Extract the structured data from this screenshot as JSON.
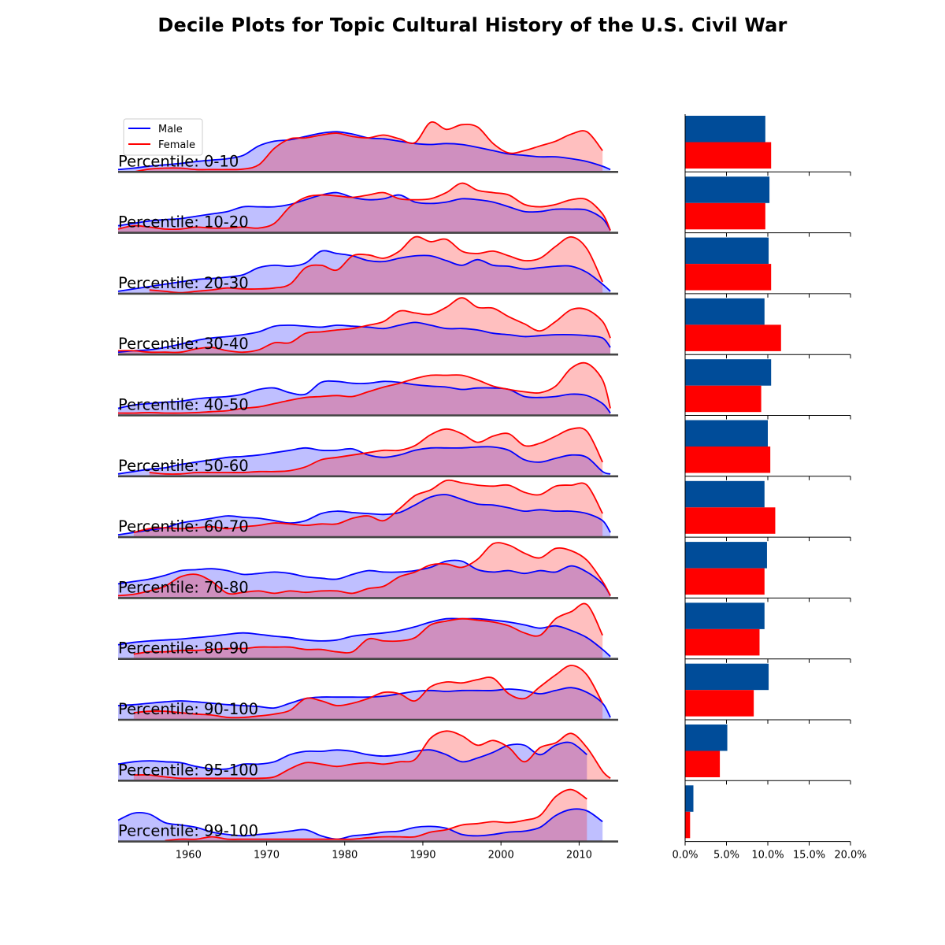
{
  "title": "Decile Plots for Topic Cultural History of the U.S. Civil War",
  "colors": {
    "male_line": "#0000ff",
    "male_fill": "#0000ff",
    "female_line": "#ff0000",
    "female_fill": "#ff0000",
    "male_bar": "#004c99",
    "female_bar": "#ff0000",
    "axis": "#444444"
  },
  "chart_data": [
    {
      "type": "area",
      "title": "",
      "xlabel": "",
      "ylabel": "",
      "xlim": [
        1951,
        2015
      ],
      "x_ticks": [
        1960,
        1970,
        1980,
        1990,
        2000,
        2010
      ],
      "x_tick_labels": [
        "1960",
        "1970",
        "1980",
        "1990",
        "2000",
        "2010"
      ],
      "legend": {
        "position": "top-left",
        "entries": [
          "Male",
          "Female"
        ]
      },
      "x": [
        1951,
        1953,
        1955,
        1957,
        1959,
        1961,
        1963,
        1965,
        1967,
        1969,
        1971,
        1973,
        1975,
        1977,
        1979,
        1981,
        1983,
        1985,
        1987,
        1989,
        1991,
        1993,
        1995,
        1997,
        1999,
        2001,
        2003,
        2005,
        2007,
        2009,
        2011,
        2013,
        2014
      ],
      "panels": [
        {
          "label": "Percentile: 0-10",
          "male": [
            0.05,
            0.08,
            0.12,
            0.15,
            0.18,
            0.22,
            0.25,
            0.28,
            0.35,
            0.55,
            0.65,
            0.68,
            0.75,
            0.82,
            0.85,
            0.8,
            0.72,
            0.7,
            0.65,
            0.6,
            0.58,
            0.6,
            0.58,
            0.52,
            0.45,
            0.38,
            0.35,
            0.32,
            0.32,
            0.28,
            0.22,
            0.12,
            0.05
          ],
          "female": [
            null,
            0.0,
            0.06,
            0.08,
            0.08,
            0.05,
            0.05,
            0.05,
            0.06,
            0.15,
            0.5,
            0.7,
            0.72,
            0.78,
            0.82,
            0.75,
            0.72,
            0.78,
            0.7,
            0.62,
            1.05,
            0.9,
            1.0,
            0.95,
            0.6,
            0.4,
            0.45,
            0.55,
            0.65,
            0.8,
            0.85,
            0.45,
            null
          ]
        },
        {
          "label": "Percentile: 10-20",
          "male": [
            0.15,
            0.2,
            0.25,
            0.28,
            0.3,
            0.35,
            0.4,
            0.45,
            0.55,
            0.55,
            0.55,
            0.6,
            0.7,
            0.8,
            0.85,
            0.75,
            0.7,
            0.72,
            0.8,
            0.65,
            0.62,
            0.65,
            0.72,
            0.7,
            0.65,
            0.55,
            0.45,
            0.45,
            0.5,
            0.5,
            0.48,
            0.3,
            0.05
          ],
          "female": [
            0.08,
            0.15,
            0.12,
            0.08,
            0.08,
            0.12,
            0.1,
            0.1,
            0.12,
            0.1,
            0.2,
            0.55,
            0.75,
            0.8,
            0.78,
            0.75,
            0.8,
            0.85,
            0.72,
            0.7,
            0.72,
            0.85,
            1.05,
            0.9,
            0.85,
            0.8,
            0.6,
            0.55,
            0.6,
            0.7,
            0.7,
            0.4,
            0.05
          ]
        },
        {
          "label": "Percentile: 20-30",
          "male": [
            0.05,
            0.1,
            0.15,
            0.2,
            0.25,
            0.3,
            0.32,
            0.35,
            0.4,
            0.55,
            0.6,
            0.58,
            0.65,
            0.9,
            0.85,
            0.8,
            0.7,
            0.68,
            0.75,
            0.8,
            0.8,
            0.7,
            0.6,
            0.72,
            0.6,
            0.58,
            0.52,
            0.55,
            0.58,
            0.58,
            0.45,
            0.2,
            0.05
          ],
          "female": [
            null,
            null,
            0.08,
            0.05,
            0.02,
            0.05,
            0.08,
            0.12,
            0.1,
            0.1,
            0.12,
            0.2,
            0.55,
            0.6,
            0.5,
            0.8,
            0.82,
            0.75,
            0.9,
            1.2,
            1.1,
            1.15,
            0.9,
            0.85,
            0.9,
            0.8,
            0.7,
            0.75,
            1.0,
            1.2,
            0.95,
            0.25,
            null
          ]
        },
        {
          "label": "Percentile: 30-40",
          "male": [
            0.05,
            0.08,
            0.1,
            0.15,
            0.22,
            0.3,
            0.35,
            0.38,
            0.42,
            0.48,
            0.6,
            0.62,
            0.6,
            0.58,
            0.62,
            0.6,
            0.58,
            0.55,
            0.62,
            0.68,
            0.62,
            0.55,
            0.55,
            0.52,
            0.45,
            0.42,
            0.38,
            0.4,
            0.42,
            0.42,
            0.4,
            0.35,
            0.15
          ],
          "female": [
            0.08,
            0.08,
            0.05,
            0.05,
            0.05,
            0.12,
            0.15,
            0.08,
            0.05,
            0.1,
            0.25,
            0.25,
            0.45,
            0.48,
            0.52,
            0.55,
            0.62,
            0.7,
            0.92,
            0.88,
            0.85,
            1.0,
            1.2,
            1.0,
            0.98,
            0.8,
            0.65,
            0.5,
            0.7,
            0.95,
            0.95,
            0.7,
            0.35
          ]
        },
        {
          "label": "Percentile: 40-50",
          "male": [
            0.15,
            0.22,
            0.25,
            0.28,
            0.3,
            0.35,
            0.38,
            0.4,
            0.45,
            0.55,
            0.58,
            0.48,
            0.45,
            0.7,
            0.72,
            0.68,
            0.68,
            0.72,
            0.7,
            0.65,
            0.62,
            0.6,
            0.55,
            0.58,
            0.58,
            0.55,
            0.4,
            0.38,
            0.4,
            0.45,
            0.42,
            0.25,
            0.05
          ],
          "female": [
            0.05,
            0.05,
            0.06,
            0.05,
            0.05,
            0.06,
            0.08,
            0.1,
            0.15,
            0.18,
            0.25,
            0.32,
            0.38,
            0.4,
            0.42,
            0.4,
            0.5,
            0.6,
            0.68,
            0.78,
            0.85,
            0.85,
            0.85,
            0.75,
            0.62,
            0.55,
            0.5,
            0.48,
            0.62,
            1.0,
            1.1,
            0.75,
            0.15
          ]
        },
        {
          "label": "Percentile: 50-60",
          "male": [
            0.05,
            0.1,
            0.15,
            0.18,
            0.25,
            0.3,
            0.35,
            0.4,
            0.42,
            0.45,
            0.5,
            0.55,
            0.6,
            0.55,
            0.55,
            0.58,
            0.45,
            0.4,
            0.45,
            0.55,
            0.6,
            0.6,
            0.6,
            0.62,
            0.62,
            0.55,
            0.35,
            0.3,
            0.38,
            0.45,
            0.4,
            0.1,
            0.05
          ],
          "female": [
            null,
            null,
            0.08,
            0.05,
            0.05,
            0.08,
            0.08,
            0.08,
            0.08,
            0.1,
            0.1,
            0.12,
            0.2,
            0.35,
            0.4,
            0.45,
            0.5,
            0.55,
            0.55,
            0.65,
            0.88,
            1.0,
            0.9,
            0.72,
            0.85,
            0.9,
            0.65,
            0.7,
            0.85,
            1.0,
            0.95,
            0.3,
            null
          ]
        },
        {
          "label": "Percentile: 60-70",
          "male": [
            0.05,
            0.1,
            0.15,
            0.2,
            0.3,
            0.35,
            0.4,
            0.45,
            0.42,
            0.4,
            0.35,
            0.3,
            0.35,
            0.5,
            0.55,
            0.52,
            0.5,
            0.48,
            0.52,
            0.68,
            0.85,
            0.9,
            0.8,
            0.7,
            0.68,
            0.62,
            0.55,
            0.58,
            0.55,
            0.55,
            0.5,
            0.35,
            0.1
          ],
          "female": [
            null,
            0.1,
            0.18,
            0.2,
            0.18,
            0.2,
            0.22,
            0.18,
            0.22,
            0.25,
            0.3,
            0.28,
            0.25,
            0.28,
            0.28,
            0.4,
            0.45,
            0.35,
            0.6,
            0.88,
            1.0,
            1.2,
            1.15,
            1.1,
            1.08,
            1.1,
            0.95,
            0.9,
            1.08,
            1.1,
            1.1,
            0.5,
            null
          ]
        },
        {
          "label": "Percentile: 70-80",
          "male": [
            0.3,
            0.35,
            0.4,
            0.48,
            0.58,
            0.6,
            0.62,
            0.58,
            0.5,
            0.52,
            0.55,
            0.52,
            0.45,
            0.42,
            0.4,
            0.5,
            0.58,
            0.55,
            0.55,
            0.58,
            0.65,
            0.78,
            0.78,
            0.6,
            0.55,
            0.58,
            0.52,
            0.58,
            0.55,
            0.68,
            0.55,
            0.3,
            0.05
          ],
          "female": [
            0.05,
            0.08,
            0.15,
            0.25,
            0.45,
            0.5,
            0.35,
            0.1,
            0.12,
            0.15,
            0.1,
            0.15,
            0.12,
            0.15,
            0.15,
            0.1,
            0.2,
            0.25,
            0.45,
            0.55,
            0.7,
            0.72,
            0.65,
            0.82,
            1.15,
            1.12,
            0.95,
            0.85,
            1.05,
            1.0,
            0.8,
            0.35,
            0.05
          ]
        },
        {
          "label": "Percentile: 80-90",
          "male": [
            0.3,
            0.35,
            0.38,
            0.4,
            0.42,
            0.45,
            0.48,
            0.52,
            0.55,
            0.52,
            0.48,
            0.45,
            0.4,
            0.38,
            0.4,
            0.48,
            0.52,
            0.55,
            0.6,
            0.68,
            0.78,
            0.85,
            0.85,
            0.85,
            0.82,
            0.78,
            0.72,
            0.65,
            0.7,
            0.6,
            0.45,
            0.2,
            0.05
          ],
          "female": [
            null,
            0.1,
            0.15,
            0.15,
            0.18,
            0.18,
            0.2,
            0.22,
            0.22,
            0.25,
            0.25,
            0.25,
            0.2,
            0.2,
            0.15,
            0.15,
            0.42,
            0.38,
            0.38,
            0.45,
            0.72,
            0.8,
            0.85,
            0.82,
            0.78,
            0.7,
            0.55,
            0.5,
            0.85,
            1.0,
            1.15,
            0.5,
            null
          ]
        },
        {
          "label": "Percentile: 90-100",
          "male": [
            0.3,
            0.32,
            0.35,
            0.38,
            0.4,
            0.38,
            0.35,
            0.32,
            0.3,
            0.28,
            0.25,
            0.35,
            0.45,
            0.48,
            0.48,
            0.48,
            0.48,
            0.5,
            0.55,
            0.6,
            0.62,
            0.6,
            0.62,
            0.62,
            0.62,
            0.65,
            0.62,
            0.55,
            0.62,
            0.68,
            0.58,
            0.35,
            0.05
          ],
          "female": [
            null,
            0.15,
            0.18,
            0.18,
            0.15,
            0.12,
            0.1,
            0.05,
            0.05,
            0.08,
            0.12,
            0.2,
            0.45,
            0.4,
            0.3,
            0.35,
            0.45,
            0.58,
            0.55,
            0.4,
            0.7,
            0.8,
            0.78,
            0.85,
            0.88,
            0.55,
            0.45,
            0.7,
            0.95,
            1.15,
            0.95,
            0.35,
            null
          ]
        },
        {
          "label": "Percentile: 95-100",
          "male": [
            0.35,
            0.4,
            0.42,
            0.4,
            0.38,
            0.3,
            0.25,
            0.25,
            0.35,
            0.35,
            0.4,
            0.55,
            0.62,
            0.62,
            0.65,
            0.62,
            0.55,
            0.52,
            0.55,
            0.62,
            0.65,
            0.55,
            0.4,
            0.48,
            0.6,
            0.75,
            0.75,
            0.55,
            0.75,
            0.8,
            0.55,
            null,
            null
          ],
          "female": [
            null,
            0.12,
            0.12,
            0.08,
            0.05,
            0.05,
            0.05,
            0.05,
            0.05,
            0.05,
            0.08,
            0.25,
            0.38,
            0.35,
            0.3,
            0.35,
            0.38,
            0.35,
            0.4,
            0.45,
            0.9,
            1.05,
            0.95,
            0.75,
            0.85,
            0.7,
            0.4,
            0.7,
            0.8,
            1.0,
            0.7,
            0.2,
            0.05
          ]
        },
        {
          "label": "Percentile: 99-100",
          "male": [
            0.45,
            0.6,
            0.58,
            0.4,
            0.35,
            0.3,
            0.2,
            0.15,
            0.12,
            0.15,
            0.18,
            0.22,
            0.25,
            0.12,
            0.05,
            0.12,
            0.15,
            0.2,
            0.22,
            0.3,
            0.32,
            0.28,
            0.15,
            0.12,
            0.15,
            0.2,
            0.22,
            0.3,
            0.55,
            0.68,
            0.65,
            0.42,
            null
          ],
          "female": [
            null,
            null,
            null,
            0.02,
            0.05,
            0.05,
            0.1,
            0.05,
            0.05,
            0.05,
            0.05,
            0.05,
            0.05,
            0.05,
            0.05,
            0.05,
            0.08,
            0.1,
            0.1,
            0.1,
            0.2,
            0.25,
            0.35,
            0.38,
            0.42,
            0.4,
            0.45,
            0.55,
            0.95,
            1.1,
            0.9,
            null,
            null
          ]
        }
      ]
    },
    {
      "type": "bar",
      "title": "",
      "xlabel": "",
      "ylabel": "",
      "orientation": "horizontal",
      "xlim": [
        0,
        20
      ],
      "x_ticks": [
        0,
        5,
        10,
        15,
        20
      ],
      "x_tick_labels": [
        "0.0%",
        "5.0%",
        "10.0%",
        "15.0%",
        "20.0%"
      ],
      "categories": [
        "Percentile: 0-10",
        "Percentile: 10-20",
        "Percentile: 20-30",
        "Percentile: 30-40",
        "Percentile: 40-50",
        "Percentile: 50-60",
        "Percentile: 60-70",
        "Percentile: 70-80",
        "Percentile: 80-90",
        "Percentile: 90-100",
        "Percentile: 95-100",
        "Percentile: 99-100"
      ],
      "series": [
        {
          "name": "Male",
          "values": [
            9.7,
            10.2,
            10.1,
            9.6,
            10.4,
            10.0,
            9.6,
            9.9,
            9.6,
            10.1,
            5.1,
            1.0
          ]
        },
        {
          "name": "Female",
          "values": [
            10.4,
            9.7,
            10.4,
            11.6,
            9.2,
            10.3,
            10.9,
            9.6,
            9.0,
            8.3,
            4.2,
            0.6
          ]
        }
      ]
    }
  ]
}
